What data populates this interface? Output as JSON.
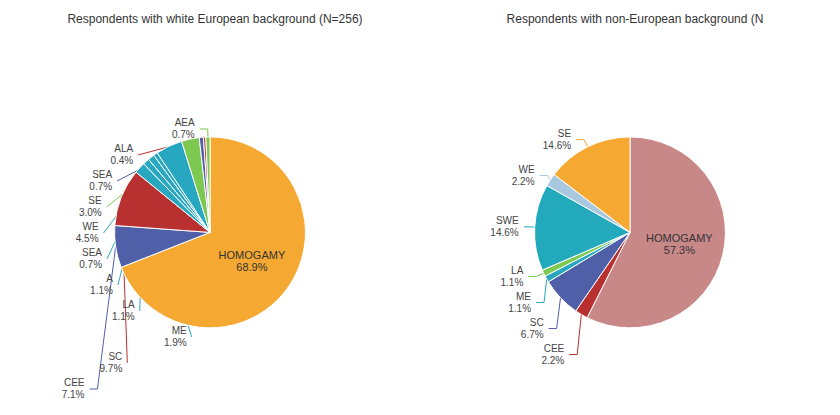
{
  "chart_data": [
    {
      "type": "pie",
      "title": "Respondents with white European background (N=256)",
      "categories": [
        "HOMOGAMY",
        "CEE",
        "SC",
        "ME",
        "LA",
        "A",
        "SEA",
        "WE",
        "SE",
        "SEA",
        "ALA",
        "AEA"
      ],
      "values": [
        68.9,
        7.1,
        9.7,
        1.9,
        1.1,
        1.1,
        0.7,
        4.5,
        3.0,
        0.7,
        0.4,
        0.7
      ],
      "value_labels": [
        "68.9%",
        "7.1%",
        "9.7%",
        "1.9%",
        "1.1%",
        "1.1%",
        "0.7%",
        "4.5%",
        "3.0%",
        "0.7%",
        "0.4%",
        "0.7%"
      ],
      "colors": [
        "#F5A832",
        "#5060A8",
        "#B83030",
        "#28A8C0",
        "#28A8C0",
        "#28A8C0",
        "#28A8C0",
        "#28A8C0",
        "#7DC850",
        "#5060A8",
        "#B83030",
        "#7DC850"
      ],
      "data_labels": true
    },
    {
      "type": "pie",
      "title": "Respondents with non-European background (N",
      "categories": [
        "HOMOGAMY",
        "CEE",
        "SC",
        "ME",
        "LA",
        "SWE",
        "WE",
        "SE"
      ],
      "values": [
        57.3,
        2.2,
        6.7,
        1.1,
        1.1,
        14.6,
        2.2,
        14.6
      ],
      "value_labels": [
        "57.3%",
        "2.2%",
        "6.7%",
        "1.1%",
        "1.1%",
        "14.6%",
        "2.2%",
        "14.6%"
      ],
      "colors": [
        "#C98888",
        "#B83030",
        "#5060A8",
        "#28A8C0",
        "#7DC850",
        "#22AABC",
        "#A8C8E0",
        "#F5A832"
      ],
      "data_labels": true
    }
  ]
}
